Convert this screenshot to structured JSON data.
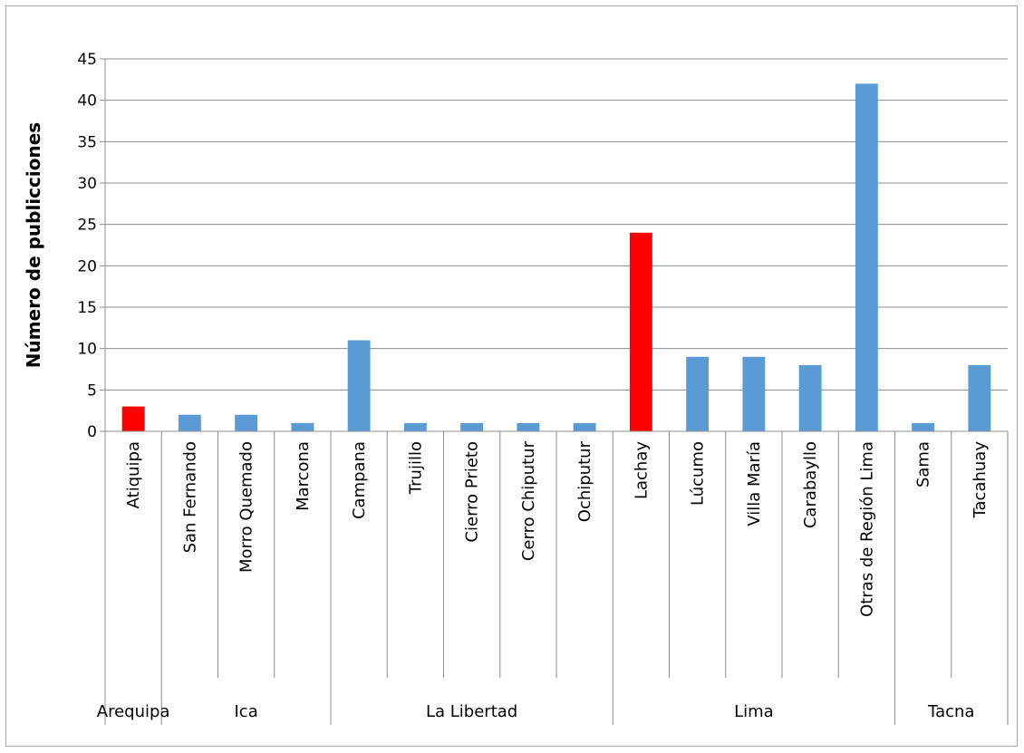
{
  "chart_data": {
    "type": "bar",
    "title": "",
    "ylabel": "Número de publicciones",
    "xlabel": "",
    "ylim": [
      0,
      45
    ],
    "yticks": [
      0,
      5,
      10,
      15,
      20,
      25,
      30,
      35,
      40,
      45
    ],
    "grid": true,
    "legend": "none",
    "categories": [
      "Atiquipa",
      "San Fernando",
      "Morro Quemado",
      "Marcona",
      "Campana",
      "Trujillo",
      "Cierro Prieto",
      "Cerro Chiputur",
      "Ochiputur",
      "Lachay",
      "Lúcumo",
      "Villa María",
      "Carabayllo",
      "Otras de Región Lima",
      "Sama",
      "Tacahuay"
    ],
    "values": [
      3,
      2,
      2,
      1,
      11,
      1,
      1,
      1,
      1,
      24,
      9,
      9,
      8,
      42,
      1,
      8
    ],
    "highlighted": [
      true,
      false,
      false,
      false,
      false,
      false,
      false,
      false,
      false,
      true,
      false,
      false,
      false,
      false,
      false,
      false
    ],
    "groups": [
      {
        "name": "Arequipa",
        "count": 1
      },
      {
        "name": "Ica",
        "count": 3
      },
      {
        "name": "La Libertad",
        "count": 5
      },
      {
        "name": "Lima",
        "count": 5
      },
      {
        "name": "Tacna",
        "count": 2
      }
    ],
    "colors": {
      "default": "#5b9bd5",
      "highlight": "#ff0000",
      "grid": "#8c8c8c",
      "axis": "#8c8c8c"
    }
  }
}
